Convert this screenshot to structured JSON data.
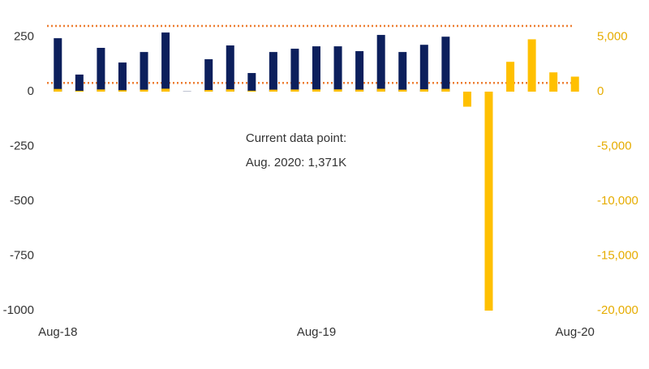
{
  "chart_data": {
    "type": "bar",
    "categories": [
      "Aug-18",
      null,
      null,
      null,
      null,
      null,
      null,
      null,
      null,
      null,
      null,
      null,
      "Aug-19",
      null,
      null,
      null,
      null,
      null,
      null,
      null,
      null,
      null,
      null,
      null,
      "Aug-20"
    ],
    "series": [
      {
        "color": "#0c1f5c",
        "axis": "y",
        "values": [
          244,
          78,
          200,
          133,
          181,
          270,
          1,
          148,
          211,
          85,
          181,
          196,
          207,
          207,
          185,
          259,
          181,
          214,
          251,
          null,
          null,
          null,
          null,
          null,
          null
        ]
      },
      {
        "color": "#ffc000",
        "axis": "y2",
        "values": [
          244,
          78,
          200,
          133,
          181,
          270,
          1,
          148,
          211,
          85,
          181,
          196,
          207,
          207,
          185,
          259,
          181,
          214,
          251,
          -1373,
          -20000,
          2725,
          4781,
          1761,
          1371
        ]
      }
    ],
    "reference_lines": [
      {
        "value": 300,
        "axis": "y",
        "color": "#ed7d31"
      },
      {
        "value": 40,
        "axis": "y",
        "color": "#ed7d31"
      }
    ],
    "annotations": [
      "Current data point:",
      "Aug. 2020: 1,371K"
    ],
    "ylim": [
      -1000,
      300
    ],
    "yticks": [
      250,
      0,
      -250,
      -500,
      -750,
      -1000
    ],
    "y2lim": [
      -20000,
      6000
    ],
    "y2ticks": [
      {
        "value": 5000,
        "label": "5,000"
      },
      0,
      {
        "value": -5000,
        "label": "-5,000"
      },
      {
        "value": -10000,
        "label": "-10,000"
      },
      {
        "value": -15000,
        "label": "-15,000"
      },
      {
        "value": -20000,
        "label": "-20,000"
      }
    ],
    "grid": false
  }
}
